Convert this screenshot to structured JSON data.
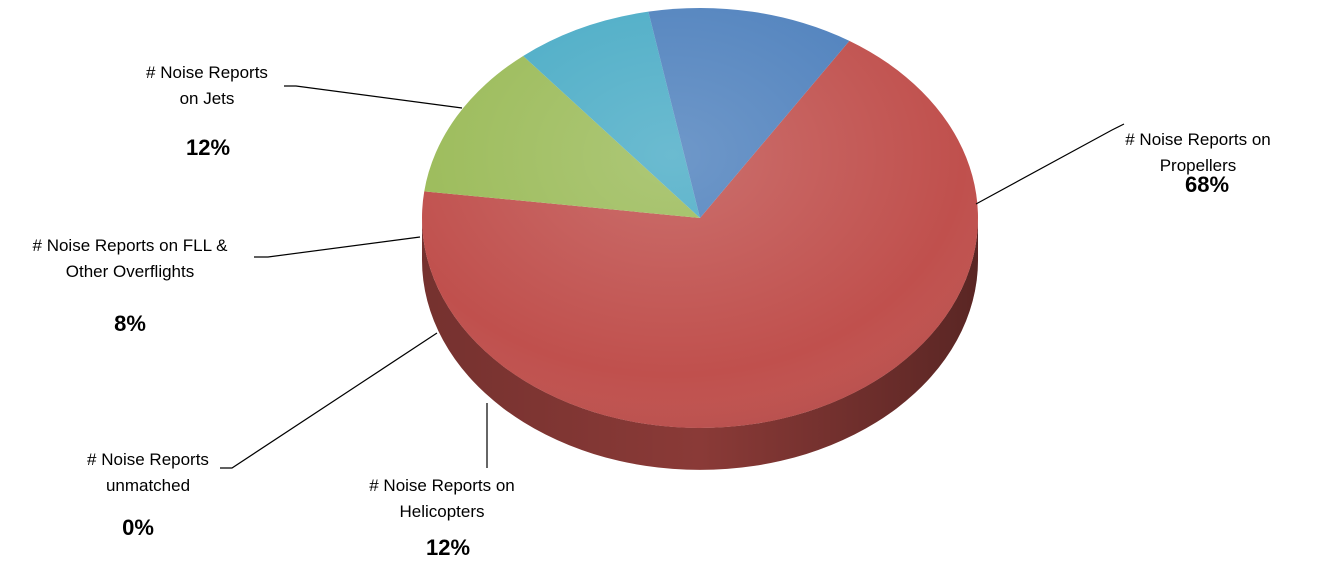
{
  "chart_data": {
    "type": "pie",
    "slices": [
      {
        "name_lines": [
          "# Noise Reports on",
          "Propellers"
        ],
        "percent_label": "68%",
        "value": 68,
        "color": "#c0504d"
      },
      {
        "name_lines": [
          "# Noise Reports on",
          "Helicopters"
        ],
        "percent_label": "12%",
        "value": 12,
        "color": "#9bbb59"
      },
      {
        "name_lines": [
          "# Noise Reports",
          "unmatched"
        ],
        "percent_label": "0%",
        "value": 0,
        "color": "#8064a2"
      },
      {
        "name_lines": [
          "# Noise Reports on FLL &",
          "Other Overflights"
        ],
        "percent_label": "8%",
        "value": 8,
        "color": "#4bacc6"
      },
      {
        "name_lines": [
          "# Noise Reports",
          "on Jets"
        ],
        "percent_label": "12%",
        "value": 12,
        "color": "#4f81bd"
      }
    ],
    "style": "3d"
  }
}
